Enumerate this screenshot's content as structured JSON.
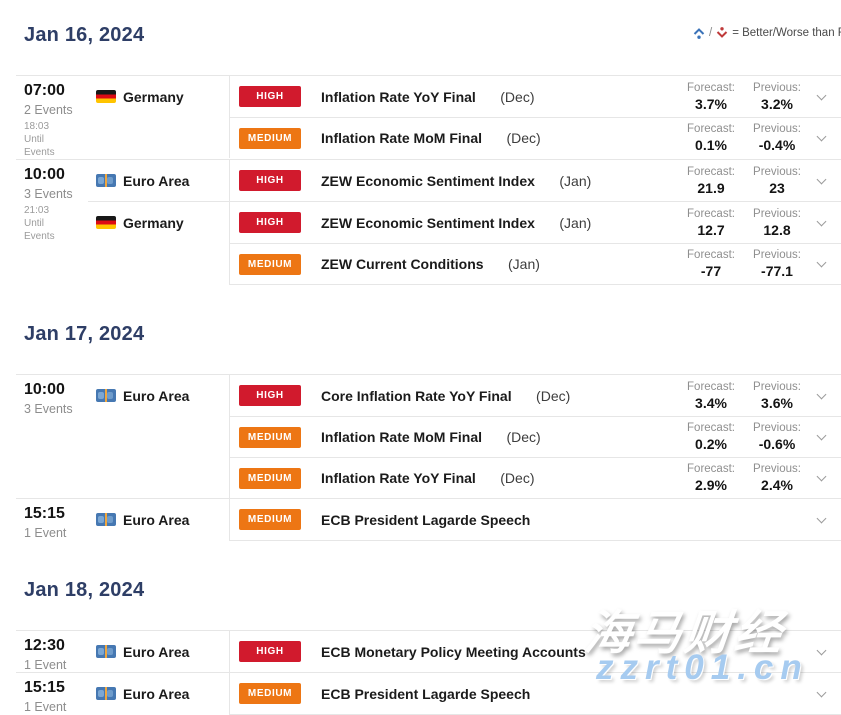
{
  "legend": {
    "text": "= Better/Worse than Forecast",
    "better_color": "#3b73b9",
    "worse_color": "#bf3a3a"
  },
  "labels": {
    "forecast": "Forecast:",
    "previous": "Previous:"
  },
  "impact_levels": {
    "high": {
      "label": "HIGH",
      "color": "#d11a2d"
    },
    "medium": {
      "label": "MEDIUM",
      "color": "#ed7614"
    }
  },
  "days": [
    {
      "date": "Jan 16, 2024",
      "groups": [
        {
          "time": "07:00",
          "events_count": "2 Events",
          "countdown": [
            "18:03",
            "Until",
            "Events"
          ],
          "countries": [
            {
              "name": "Germany",
              "flag": "de",
              "events": [
                {
                  "impact": "high",
                  "title": "Inflation Rate YoY Final",
                  "period": "(Dec)",
                  "forecast": "3.7%",
                  "previous": "3.2%"
                },
                {
                  "impact": "medium",
                  "title": "Inflation Rate MoM Final",
                  "period": "(Dec)",
                  "forecast": "0.1%",
                  "previous": "-0.4%"
                }
              ]
            }
          ]
        },
        {
          "time": "10:00",
          "events_count": "3 Events",
          "countdown": [
            "21:03",
            "Until",
            "Events"
          ],
          "countries": [
            {
              "name": "Euro Area",
              "flag": "eu",
              "events": [
                {
                  "impact": "high",
                  "title": "ZEW Economic Sentiment Index",
                  "period": "(Jan)",
                  "forecast": "21.9",
                  "previous": "23"
                }
              ]
            },
            {
              "name": "Germany",
              "flag": "de",
              "events": [
                {
                  "impact": "high",
                  "title": "ZEW Economic Sentiment Index",
                  "period": "(Jan)",
                  "forecast": "12.7",
                  "previous": "12.8"
                },
                {
                  "impact": "medium",
                  "title": "ZEW Current Conditions",
                  "period": "(Jan)",
                  "forecast": "-77",
                  "previous": "-77.1"
                }
              ]
            }
          ]
        }
      ]
    },
    {
      "date": "Jan 17, 2024",
      "groups": [
        {
          "time": "10:00",
          "events_count": "3 Events",
          "countdown": null,
          "countries": [
            {
              "name": "Euro Area",
              "flag": "eu",
              "events": [
                {
                  "impact": "high",
                  "title": "Core Inflation Rate YoY Final",
                  "period": "(Dec)",
                  "forecast": "3.4%",
                  "previous": "3.6%"
                },
                {
                  "impact": "medium",
                  "title": "Inflation Rate MoM Final",
                  "period": "(Dec)",
                  "forecast": "0.2%",
                  "previous": "-0.6%"
                },
                {
                  "impact": "medium",
                  "title": "Inflation Rate YoY Final",
                  "period": "(Dec)",
                  "forecast": "2.9%",
                  "previous": "2.4%"
                }
              ]
            }
          ]
        },
        {
          "time": "15:15",
          "events_count": "1 Event",
          "countdown": null,
          "countries": [
            {
              "name": "Euro Area",
              "flag": "eu",
              "events": [
                {
                  "impact": "medium",
                  "title": "ECB President Lagarde Speech",
                  "period": "",
                  "forecast": null,
                  "previous": null
                }
              ]
            }
          ]
        }
      ]
    },
    {
      "date": "Jan 18, 2024",
      "groups": [
        {
          "time": "12:30",
          "events_count": "1 Event",
          "countdown": null,
          "countries": [
            {
              "name": "Euro Area",
              "flag": "eu",
              "events": [
                {
                  "impact": "high",
                  "title": "ECB Monetary Policy Meeting Accounts",
                  "period": "",
                  "forecast": null,
                  "previous": null
                }
              ]
            }
          ]
        },
        {
          "time": "15:15",
          "events_count": "1 Event",
          "countdown": null,
          "countries": [
            {
              "name": "Euro Area",
              "flag": "eu",
              "events": [
                {
                  "impact": "medium",
                  "title": "ECB President Lagarde Speech",
                  "period": "",
                  "forecast": null,
                  "previous": null
                }
              ]
            }
          ]
        }
      ]
    }
  ],
  "watermark": {
    "line1": "海马财经",
    "line2": "zzrt01.cn"
  }
}
